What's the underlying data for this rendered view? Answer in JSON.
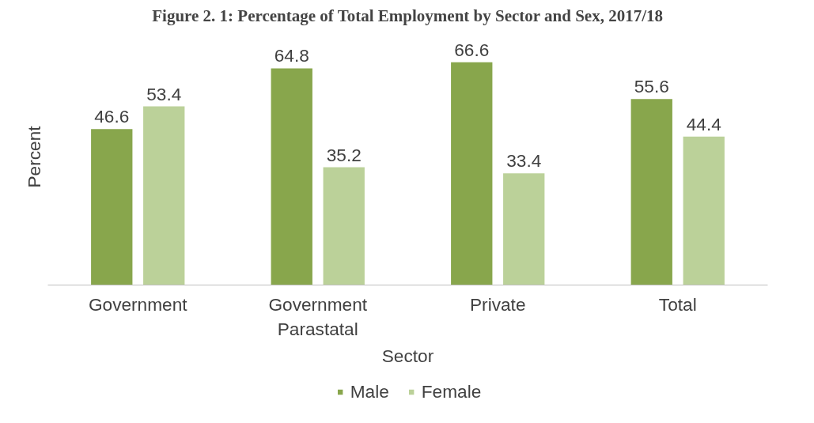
{
  "chart_data": {
    "type": "bar",
    "title": "Figure 2. 1: Percentage of Total Employment by Sector and Sex, 2017/18",
    "xlabel": "Sector",
    "ylabel": "Percent",
    "categories": [
      "Government",
      "Government Parastatal",
      "Private",
      "Total"
    ],
    "series": [
      {
        "name": "Male",
        "color": "#88a64c",
        "values": [
          46.6,
          64.8,
          66.6,
          55.6
        ]
      },
      {
        "name": "Female",
        "color": "#bbd199",
        "values": [
          53.4,
          35.2,
          33.4,
          44.4
        ]
      }
    ],
    "data_labels": true,
    "legend": "bottom"
  }
}
